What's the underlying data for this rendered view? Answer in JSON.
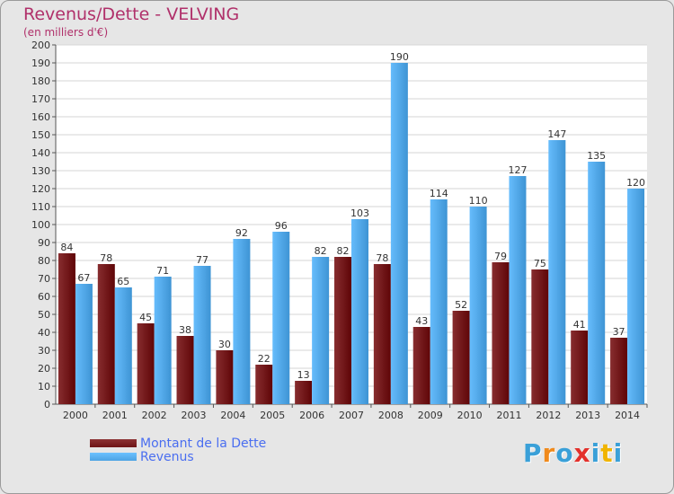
{
  "header": {
    "title": "Revenus/Dette - VELVING",
    "subtitle": "(en milliers d'€)"
  },
  "legend": {
    "items": [
      {
        "label": "Montant de la Dette",
        "color": "#6e1416"
      },
      {
        "label": "Revenus",
        "color": "#4da3e3"
      }
    ]
  },
  "logo": {
    "text": "Proxiti",
    "letters": [
      {
        "ch": "P",
        "color": "#3aa0d8"
      },
      {
        "ch": "r",
        "color": "#f08a1c"
      },
      {
        "ch": "o",
        "color": "#3aa0d8"
      },
      {
        "ch": "x",
        "color": "#e3302b"
      },
      {
        "ch": "i",
        "color": "#3aa0d8"
      },
      {
        "ch": "t",
        "color": "#f0b400"
      },
      {
        "ch": "i",
        "color": "#3aa0d8"
      }
    ]
  },
  "chart_data": {
    "type": "bar",
    "title": "Revenus/Dette - VELVING",
    "subtitle": "(en milliers d'€)",
    "categories": [
      "2000",
      "2001",
      "2002",
      "2003",
      "2004",
      "2005",
      "2006",
      "2007",
      "2008",
      "2009",
      "2010",
      "2011",
      "2012",
      "2013",
      "2014"
    ],
    "series": [
      {
        "name": "Montant de la Dette",
        "color": "#6e1416",
        "values": [
          84,
          78,
          45,
          38,
          30,
          22,
          13,
          82,
          78,
          43,
          52,
          79,
          75,
          41,
          37
        ]
      },
      {
        "name": "Revenus",
        "color": "#4da3e3",
        "values": [
          67,
          65,
          71,
          77,
          92,
          96,
          82,
          103,
          190,
          114,
          110,
          127,
          147,
          135,
          120
        ]
      }
    ],
    "ylim": [
      0,
      200
    ],
    "ytick_step": 10,
    "grid": true,
    "legend_position": "bottom-left"
  }
}
